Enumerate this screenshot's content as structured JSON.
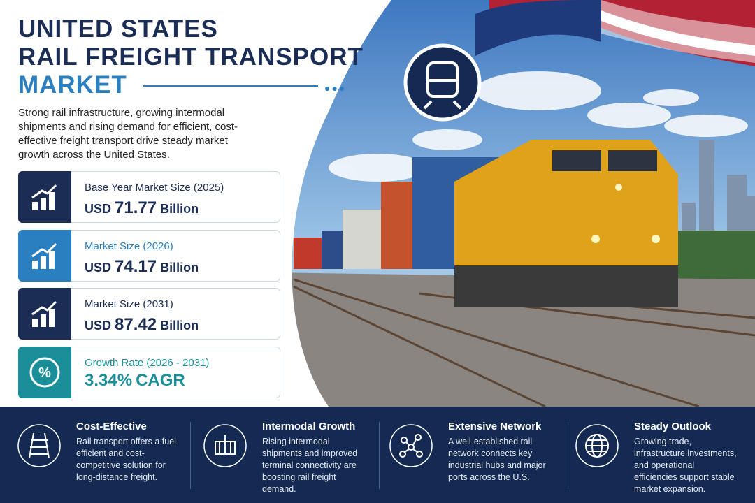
{
  "header": {
    "title_lines": [
      "UNITED STATES",
      "RAIL FREIGHT TRANSPORT",
      "MARKET"
    ],
    "description": "Strong rail infrastructure, growing intermodal shipments and rising demand for efficient, cost-effective freight transport drive steady market growth across the United States."
  },
  "stats": [
    {
      "label": "Base Year Market Size (2025)",
      "prefix": "USD",
      "amount": "71.77",
      "unit": "Billion",
      "color": "#1b2d55"
    },
    {
      "label": "Market Size (2026)",
      "prefix": "USD",
      "amount": "74.17",
      "unit": "Billion",
      "color": "#2a7fc0"
    },
    {
      "label": "Market Size (2031)",
      "prefix": "USD",
      "amount": "87.42",
      "unit": "Billion",
      "color": "#1b2d55"
    },
    {
      "label": "Growth Rate (2026 - 2031)",
      "amount": "3.34%",
      "unit": "CAGR",
      "color": "#1a8f9a"
    }
  ],
  "features": [
    {
      "title": "Cost-Effective",
      "text": "Rail transport offers a fuel-efficient and cost-competitive solution for long-distance freight."
    },
    {
      "title": "Intermodal Growth",
      "text": "Rising intermodal shipments and improved terminal connectivity are boosting rail freight demand."
    },
    {
      "title": "Extensive Network",
      "text": "A well-established rail network connects key industrial hubs and major ports across the U.S."
    },
    {
      "title": "Steady Outlook",
      "text": "Growing trade, infrastructure investments, and operational efficiencies support stable market expansion."
    }
  ]
}
